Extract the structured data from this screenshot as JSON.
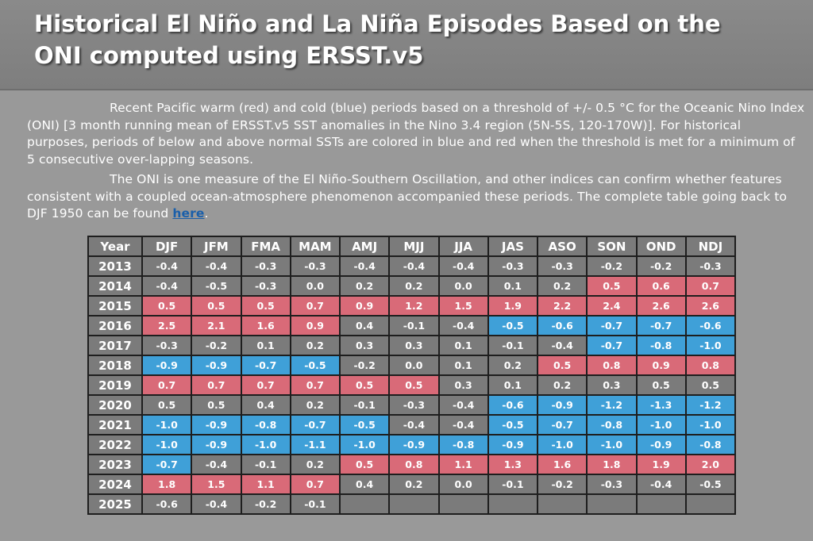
{
  "header": {
    "title": "Historical El Niño and La Niña Episodes Based on the ONI computed using ERSST.v5"
  },
  "intro": {
    "paragraph1": "Recent Pacific warm (red) and cold (blue) periods based on a threshold of +/- 0.5 °C for the Oceanic Nino Index (ONI) [3 month running mean of ERSST.v5 SST anomalies in the Nino 3.4 region (5N-5S, 120-170W)]. For historical purposes, periods of below and above normal SSTs are colored in blue and red when the threshold is met for a minimum of 5 consecutive over-lapping seasons.",
    "paragraph2": "The ONI is one measure of the El Niño-Southern Oscillation, and other indices can confirm whether features consistent with a coupled ocean-atmosphere phenomenon accompanied these periods. The complete table going back to DJF 1950 can be found ",
    "link_text": "here",
    "trailing": "."
  },
  "colors": {
    "warm": "#d96a78",
    "cold": "#3fa0d8",
    "neutral": "#7b7b7b",
    "grid": "#1e1e1e"
  },
  "table": {
    "columns": [
      "Year",
      "DJF",
      "JFM",
      "FMA",
      "MAM",
      "AMJ",
      "MJJ",
      "JJA",
      "JAS",
      "ASO",
      "SON",
      "OND",
      "NDJ"
    ],
    "rows": [
      {
        "year": "2013",
        "values": [
          "-0.4",
          "-0.4",
          "-0.3",
          "-0.3",
          "-0.4",
          "-0.4",
          "-0.4",
          "-0.3",
          "-0.3",
          "-0.2",
          "-0.2",
          "-0.3"
        ],
        "status": "nnnnnnnnnnnn"
      },
      {
        "year": "2014",
        "values": [
          "-0.4",
          "-0.5",
          "-0.3",
          "0.0",
          "0.2",
          "0.2",
          "0.0",
          "0.1",
          "0.2",
          "0.5",
          "0.6",
          "0.7"
        ],
        "status": "nnnnnnnnnwww"
      },
      {
        "year": "2015",
        "values": [
          "0.5",
          "0.5",
          "0.5",
          "0.7",
          "0.9",
          "1.2",
          "1.5",
          "1.9",
          "2.2",
          "2.4",
          "2.6",
          "2.6"
        ],
        "status": "wwwwwwwwwwww"
      },
      {
        "year": "2016",
        "values": [
          "2.5",
          "2.1",
          "1.6",
          "0.9",
          "0.4",
          "-0.1",
          "-0.4",
          "-0.5",
          "-0.6",
          "-0.7",
          "-0.7",
          "-0.6"
        ],
        "status": "wwwwnnnccccc"
      },
      {
        "year": "2017",
        "values": [
          "-0.3",
          "-0.2",
          "0.1",
          "0.2",
          "0.3",
          "0.3",
          "0.1",
          "-0.1",
          "-0.4",
          "-0.7",
          "-0.8",
          "-1.0"
        ],
        "status": "nnnnnnnnnccc"
      },
      {
        "year": "2018",
        "values": [
          "-0.9",
          "-0.9",
          "-0.7",
          "-0.5",
          "-0.2",
          "0.0",
          "0.1",
          "0.2",
          "0.5",
          "0.8",
          "0.9",
          "0.8"
        ],
        "status": "ccccnnnnwwww"
      },
      {
        "year": "2019",
        "values": [
          "0.7",
          "0.7",
          "0.7",
          "0.7",
          "0.5",
          "0.5",
          "0.3",
          "0.1",
          "0.2",
          "0.3",
          "0.5",
          "0.5"
        ],
        "status": "wwwwwwnnnnnn"
      },
      {
        "year": "2020",
        "values": [
          "0.5",
          "0.5",
          "0.4",
          "0.2",
          "-0.1",
          "-0.3",
          "-0.4",
          "-0.6",
          "-0.9",
          "-1.2",
          "-1.3",
          "-1.2"
        ],
        "status": "nnnnnnnccccc"
      },
      {
        "year": "2021",
        "values": [
          "-1.0",
          "-0.9",
          "-0.8",
          "-0.7",
          "-0.5",
          "-0.4",
          "-0.4",
          "-0.5",
          "-0.7",
          "-0.8",
          "-1.0",
          "-1.0"
        ],
        "status": "cccccnnccccc"
      },
      {
        "year": "2022",
        "values": [
          "-1.0",
          "-0.9",
          "-1.0",
          "-1.1",
          "-1.0",
          "-0.9",
          "-0.8",
          "-0.9",
          "-1.0",
          "-1.0",
          "-0.9",
          "-0.8"
        ],
        "status": "cccccccccccc"
      },
      {
        "year": "2023",
        "values": [
          "-0.7",
          "-0.4",
          "-0.1",
          "0.2",
          "0.5",
          "0.8",
          "1.1",
          "1.3",
          "1.6",
          "1.8",
          "1.9",
          "2.0"
        ],
        "status": "cnnnwwwwwwww"
      },
      {
        "year": "2024",
        "values": [
          "1.8",
          "1.5",
          "1.1",
          "0.7",
          "0.4",
          "0.2",
          "0.0",
          "-0.1",
          "-0.2",
          "-0.3",
          "-0.4",
          "-0.5"
        ],
        "status": "wwwwnnnnnnnn"
      },
      {
        "year": "2025",
        "values": [
          "-0.6",
          "-0.4",
          "-0.2",
          "-0.1",
          "",
          "",
          "",
          "",
          "",
          "",
          "",
          ""
        ],
        "status": "nnnnnnnnnnnn"
      }
    ]
  }
}
